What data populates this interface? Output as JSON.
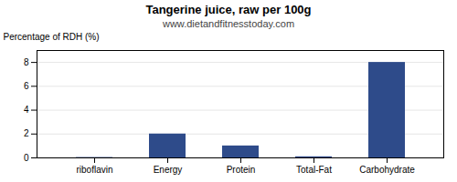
{
  "chart_data": {
    "type": "bar",
    "title": "Tangerine juice, raw per 100g",
    "subtitle": "www.dietandfitnesstoday.com",
    "categories": [
      "riboflavin",
      "Energy",
      "Protein",
      "Total-Fat",
      "Carbohydrate"
    ],
    "values": [
      0.03,
      2.0,
      1.0,
      0.09,
      8.0
    ],
    "color": "#2e4b8a",
    "ylabel": "Percentage of RDH (%)",
    "ylim": [
      0,
      9
    ],
    "yticks": [
      0,
      2,
      4,
      6,
      8
    ],
    "grid": true
  }
}
